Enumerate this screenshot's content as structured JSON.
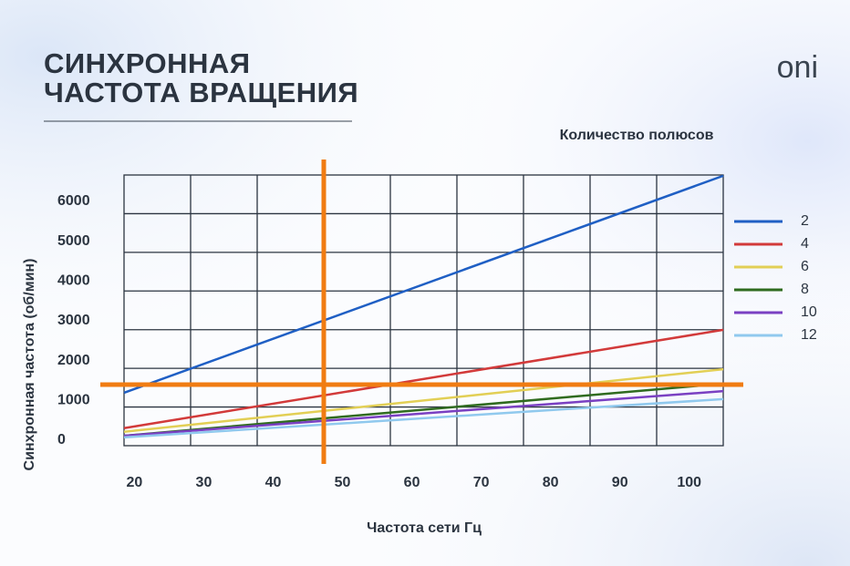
{
  "brand": "oni",
  "chart_data": {
    "type": "line",
    "title": [
      "СИНХРОННАЯ",
      "ЧАСТОТА ВРАЩЕНИЯ"
    ],
    "xlabel": "Частота сети Гц",
    "ylabel": "Синхронная частота  (об/мин)",
    "legend_title": "Количество полюсов",
    "x": [
      18.5,
      104.9
    ],
    "xlim": [
      18.5,
      104.9
    ],
    "xticks": [
      20,
      30,
      40,
      50,
      60,
      70,
      80,
      90,
      100
    ],
    "ylim": [
      -70,
      6730
    ],
    "yticks": [
      0,
      1000,
      2000,
      3000,
      4000,
      5000,
      6000
    ],
    "grid": true,
    "legend": "right",
    "reference_lines": {
      "x": 47.3,
      "y": 1465,
      "color": "#f07c12"
    },
    "series": [
      {
        "name": "2",
        "color": "#1f5fc4",
        "values": [
          1260,
          6710
        ]
      },
      {
        "name": "4",
        "color": "#d23a3a",
        "values": [
          370,
          2840
        ]
      },
      {
        "name": "6",
        "color": "#e2cf55",
        "values": [
          280,
          1850
        ]
      },
      {
        "name": "8",
        "color": "#2f6b1f",
        "values": [
          180,
          1490
        ]
      },
      {
        "name": "10",
        "color": "#7a40c2",
        "values": [
          180,
          1300
        ]
      },
      {
        "name": "12",
        "color": "#90c9ee",
        "values": [
          140,
          1100
        ]
      }
    ]
  }
}
